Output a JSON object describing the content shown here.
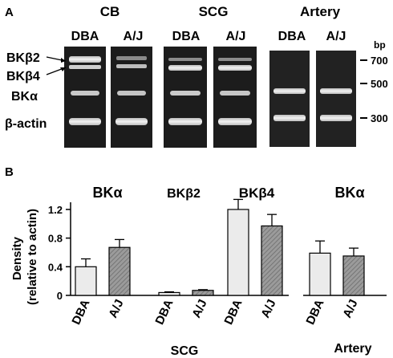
{
  "panel_a": {
    "letter": "A",
    "tissues": [
      "CB",
      "SCG",
      "Artery"
    ],
    "lane_labels": [
      "DBA",
      "A/J",
      "DBA",
      "A/J",
      "DBA",
      "A/J"
    ],
    "band_labels": [
      "BKβ2",
      "BKβ4",
      "BKα",
      "β-actin"
    ],
    "ladder": {
      "unit": "bp",
      "marks": [
        "700",
        "500",
        "300"
      ]
    }
  },
  "panel_b": {
    "letter": "B",
    "group_labels": [
      "SCG",
      "Artery"
    ]
  },
  "chart_data": [
    {
      "type": "bar",
      "title": "",
      "ylabel": "Density (relative to actin)",
      "ylim": [
        0,
        1.3
      ],
      "yticks": [
        "0",
        "0.4",
        "0.8",
        "1.2"
      ],
      "subgroups": [
        "BKα",
        "BKβ2",
        "BKβ4"
      ],
      "categories": [
        "DBA",
        "A/J"
      ],
      "series": [
        {
          "name": "BKα",
          "values": [
            0.4,
            0.67
          ],
          "errors": [
            0.11,
            0.11
          ]
        },
        {
          "name": "BKβ2",
          "values": [
            0.04,
            0.07
          ],
          "errors": [
            0.01,
            0.01
          ]
        },
        {
          "name": "BKβ4",
          "values": [
            1.2,
            0.97
          ],
          "errors": [
            0.14,
            0.16
          ]
        }
      ],
      "group_label": "SCG"
    },
    {
      "type": "bar",
      "title": "",
      "ylim": [
        0,
        1.3
      ],
      "subgroups": [
        "BKα"
      ],
      "categories": [
        "DBA",
        "A/J"
      ],
      "series": [
        {
          "name": "BKα",
          "values": [
            0.59,
            0.55
          ],
          "errors": [
            0.17,
            0.11
          ]
        }
      ],
      "group_label": "Artery"
    }
  ],
  "colors": {
    "dba_fill": "#ebebeb",
    "aj_fill": "#9b9b9b",
    "gel_bg": "#1a1a1a",
    "band": "#e8e8e8"
  }
}
